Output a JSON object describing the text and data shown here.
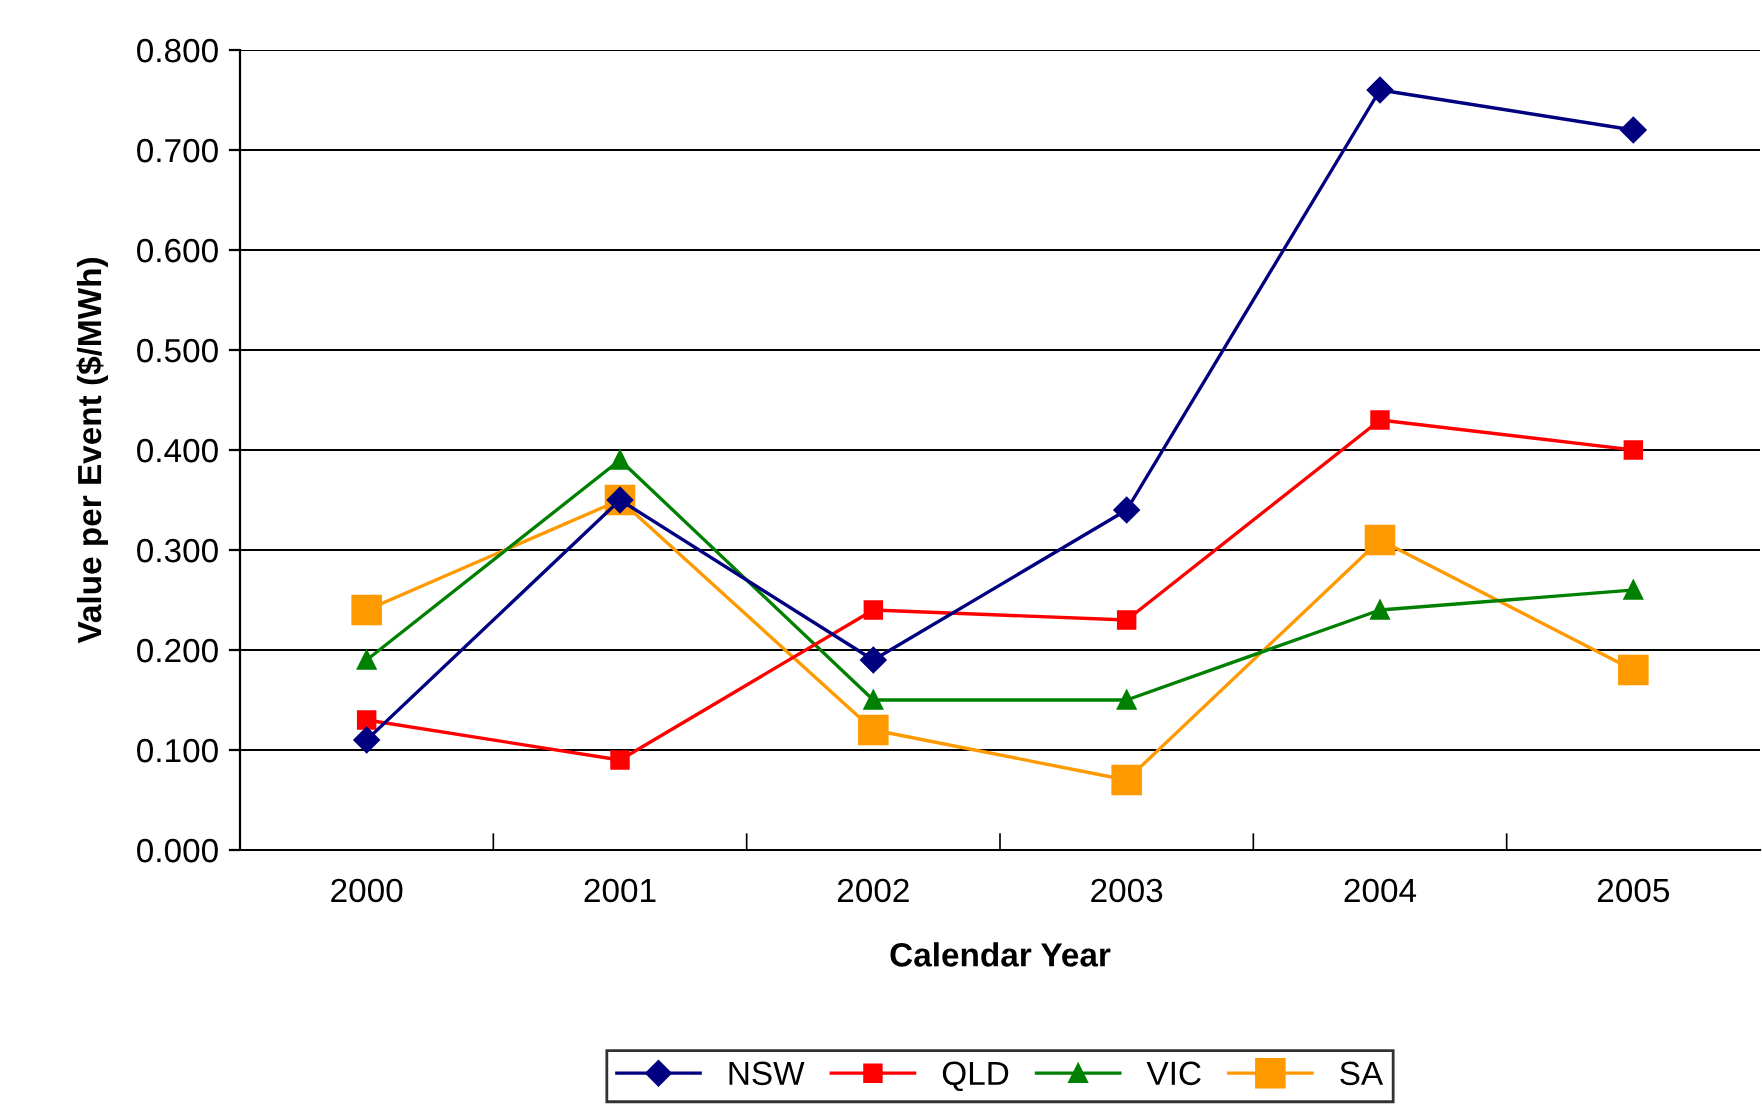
{
  "chart_data": {
    "type": "line",
    "xlabel": "Calendar Year",
    "ylabel": "Value per Event ($/MWh)",
    "categories": [
      "2000",
      "2001",
      "2002",
      "2003",
      "2004",
      "2005"
    ],
    "series": [
      {
        "name": "NSW",
        "color": "#000080",
        "marker": "diamond",
        "values": [
          0.11,
          0.35,
          0.19,
          0.34,
          0.76,
          0.72
        ]
      },
      {
        "name": "QLD",
        "color": "#ff0000",
        "marker": "square",
        "values": [
          0.13,
          0.09,
          0.24,
          0.23,
          0.43,
          0.4
        ]
      },
      {
        "name": "VIC",
        "color": "#008000",
        "marker": "triangle",
        "values": [
          0.19,
          0.39,
          0.15,
          0.15,
          0.24,
          0.26
        ]
      },
      {
        "name": "SA",
        "color": "#ff9900",
        "marker": "square",
        "values": [
          0.24,
          0.35,
          0.12,
          0.07,
          0.31,
          0.18
        ]
      }
    ],
    "ylim": [
      0,
      0.8
    ],
    "yticks": [
      {
        "value": 0,
        "label": "0.000"
      },
      {
        "value": 0.1,
        "label": "0.100"
      },
      {
        "value": 0.2,
        "label": "0.200"
      },
      {
        "value": 0.3,
        "label": "0.300"
      },
      {
        "value": 0.4,
        "label": "0.400"
      },
      {
        "value": 0.5,
        "label": "0.500"
      },
      {
        "value": 0.6,
        "label": "0.600"
      },
      {
        "value": 0.7,
        "label": "0.700"
      },
      {
        "value": 0.8,
        "label": "0.800"
      }
    ],
    "grid": "y",
    "legend": "bottom"
  }
}
